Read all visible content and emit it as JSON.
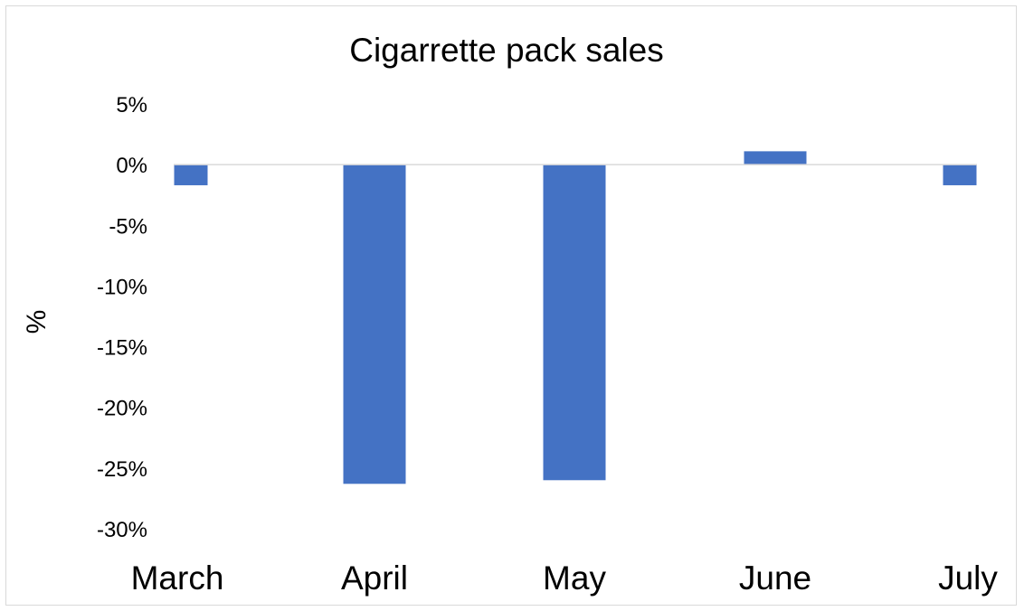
{
  "chart_data": {
    "type": "bar",
    "title": "Cigarrette pack sales",
    "xlabel": "",
    "ylabel": "%",
    "categories": [
      "March",
      "April",
      "May",
      "June",
      "July"
    ],
    "values": [
      -1.7,
      -26.3,
      -26.0,
      1.1,
      -1.7
    ],
    "ylim": [
      -30,
      5
    ],
    "yticks": [
      5,
      0,
      -5,
      -10,
      -15,
      -20,
      -25,
      -30
    ],
    "ytick_labels": [
      "5%",
      "0%",
      "-5%",
      "-10%",
      "-15%",
      "-20%",
      "-25%",
      "-30%"
    ],
    "grid": false,
    "legend": "none",
    "bar_color": "#4472c4",
    "axis_line_color": "#d9d9d9"
  }
}
